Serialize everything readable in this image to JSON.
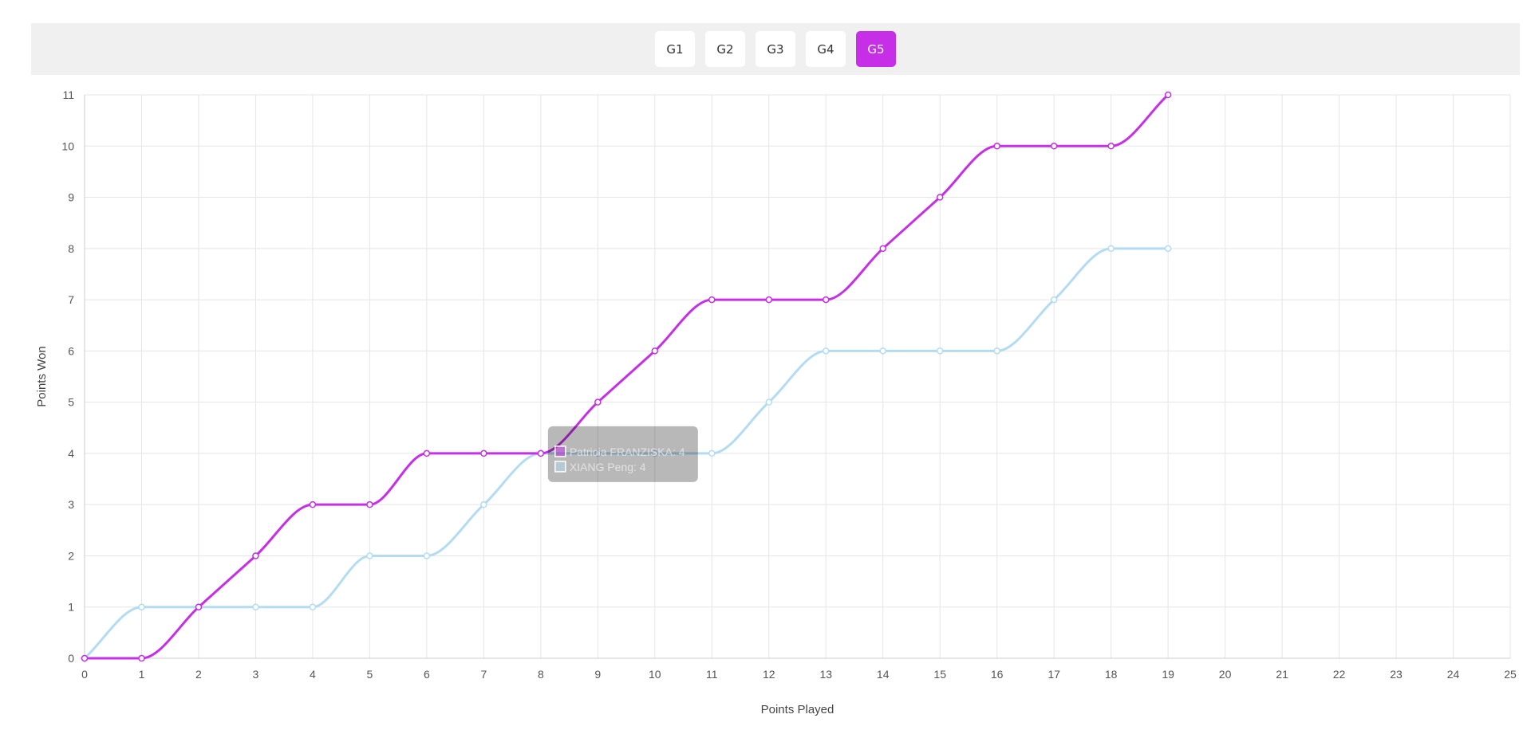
{
  "game_tabs": [
    {
      "label": "G1",
      "active": false
    },
    {
      "label": "G2",
      "active": false
    },
    {
      "label": "G3",
      "active": false
    },
    {
      "label": "G4",
      "active": false
    },
    {
      "label": "G5",
      "active": true
    }
  ],
  "accent_color": "#c62ee8",
  "chart_data": {
    "type": "line",
    "title": "",
    "xlabel": "Points Played",
    "ylabel": "Points Won",
    "xlim": [
      0,
      25
    ],
    "ylim": [
      0,
      11
    ],
    "x_ticks": [
      0,
      1,
      2,
      3,
      4,
      5,
      6,
      7,
      8,
      9,
      10,
      11,
      12,
      13,
      14,
      15,
      16,
      17,
      18,
      19,
      20,
      21,
      22,
      23,
      24,
      25
    ],
    "y_ticks": [
      0,
      1,
      2,
      3,
      4,
      5,
      6,
      7,
      8,
      9,
      10,
      11
    ],
    "grid": true,
    "series": [
      {
        "name": "Patricia FRANZISKA",
        "color": "#c62ee8",
        "x": [
          0,
          1,
          2,
          3,
          4,
          5,
          6,
          7,
          8,
          9,
          10,
          11,
          12,
          13,
          14,
          15,
          16,
          17,
          18,
          19
        ],
        "values": [
          0,
          0,
          1,
          2,
          3,
          3,
          4,
          4,
          4,
          5,
          6,
          7,
          7,
          7,
          8,
          9,
          10,
          10,
          10,
          11
        ]
      },
      {
        "name": "XIANG Peng",
        "color": "#b3dcf3",
        "x": [
          0,
          1,
          2,
          3,
          4,
          5,
          6,
          7,
          8,
          9,
          10,
          11,
          12,
          13,
          14,
          15,
          16,
          17,
          18,
          19
        ],
        "values": [
          0,
          1,
          1,
          1,
          1,
          2,
          2,
          3,
          4,
          4,
          4,
          4,
          5,
          6,
          6,
          6,
          6,
          7,
          8,
          8
        ]
      }
    ],
    "tooltip": {
      "x": 8,
      "entries": [
        {
          "text": "Patricia FRANZISKA: 4",
          "color": "#c62ee8"
        },
        {
          "text": "XIANG Peng: 4",
          "color": "#b3dcf3"
        }
      ]
    }
  }
}
